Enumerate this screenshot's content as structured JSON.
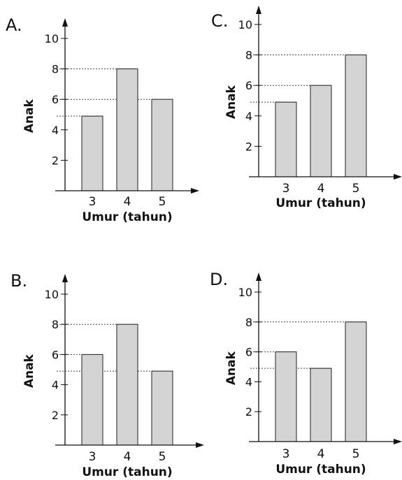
{
  "chart_data": [
    {
      "label": "A.",
      "type": "bar",
      "categories": [
        "3",
        "4",
        "5"
      ],
      "values": [
        4.9,
        8,
        6
      ],
      "xlabel": "Umur (tahun)",
      "ylabel": "Anak",
      "yticks": [
        "2",
        "4",
        "6",
        "8",
        "10"
      ],
      "ylim": [
        0,
        11
      ],
      "reference_lines": [
        4.9,
        6,
        8
      ],
      "bar_color": "#d4d4d4"
    },
    {
      "label": "C.",
      "type": "bar",
      "categories": [
        "3",
        "4",
        "5"
      ],
      "values": [
        4.9,
        6,
        8
      ],
      "xlabel": "Umur (tahun)",
      "ylabel": "Anak",
      "yticks": [
        "2",
        "4",
        "6",
        "8",
        "10"
      ],
      "ylim": [
        0,
        11
      ],
      "reference_lines": [
        4.9,
        6,
        8
      ],
      "bar_color": "#d4d4d4"
    },
    {
      "label": "B.",
      "type": "bar",
      "categories": [
        "3",
        "4",
        "5"
      ],
      "values": [
        6,
        8,
        4.9
      ],
      "xlabel": "Umur (tahun)",
      "ylabel": "Anak",
      "yticks": [
        "2",
        "4",
        "6",
        "8",
        "10"
      ],
      "ylim": [
        0,
        11
      ],
      "reference_lines": [
        4.9,
        6,
        8
      ],
      "bar_color": "#d4d4d4"
    },
    {
      "label": "D.",
      "type": "bar",
      "categories": [
        "3",
        "4",
        "5"
      ],
      "values": [
        6,
        4.9,
        8
      ],
      "xlabel": "Umur (tahun)",
      "ylabel": "Anak",
      "yticks": [
        "2",
        "4",
        "6",
        "8",
        "10"
      ],
      "ylim": [
        0,
        11
      ],
      "reference_lines": [
        4.9,
        6,
        8
      ],
      "bar_color": "#d4d4d4"
    }
  ]
}
